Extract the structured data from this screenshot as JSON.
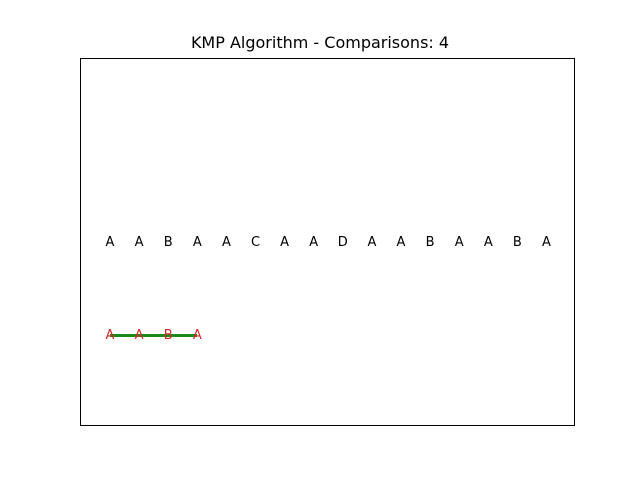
{
  "title": "KMP Algorithm - Comparisons: 4",
  "text_chars": [
    "A",
    "A",
    "B",
    "A",
    "A",
    "C",
    "A",
    "A",
    "D",
    "A",
    "A",
    "B",
    "A",
    "A",
    "B",
    "A"
  ],
  "pattern_chars": [
    "A",
    "A",
    "B",
    "A"
  ],
  "pattern_offset": 0,
  "match_length": 4,
  "colors": {
    "text": "#000000",
    "pattern": "#d62728",
    "match_line": "#1a8a1a"
  }
}
